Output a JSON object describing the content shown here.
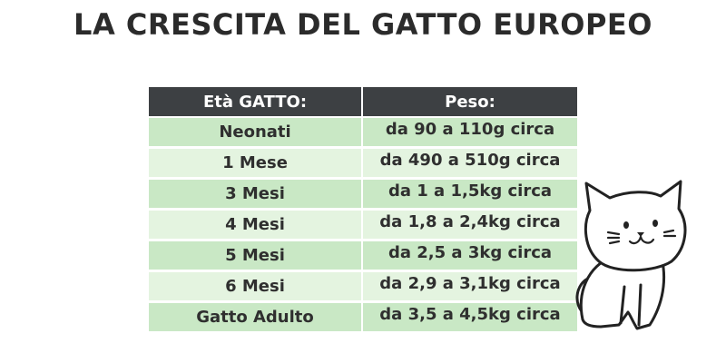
{
  "title": "LA CRESCITA DEL GATTO EUROPEO",
  "table": {
    "headers": [
      "Età GATTO:",
      "Peso:"
    ],
    "rows": [
      {
        "age": "Neonati",
        "weight": "da 90 a 110g circa"
      },
      {
        "age": "1 Mese",
        "weight": "da 490 a 510g circa"
      },
      {
        "age": "3 Mesi",
        "weight": "da 1 a 1,5kg circa"
      },
      {
        "age": "4 Mesi",
        "weight": "da 1,8 a 2,4kg circa"
      },
      {
        "age": "5 Mesi",
        "weight": "da 2,5 a 3kg circa"
      },
      {
        "age": "6 Mesi",
        "weight": "da 2,9 a 3,1kg circa"
      },
      {
        "age": "Gatto Adulto",
        "weight": "da 3,5 a 4,5kg circa"
      }
    ]
  },
  "colors": {
    "header_bg": "#3d4043",
    "row_dark": "#c9e8c5",
    "row_light": "#e4f4e0"
  },
  "illustration": "cat-icon"
}
